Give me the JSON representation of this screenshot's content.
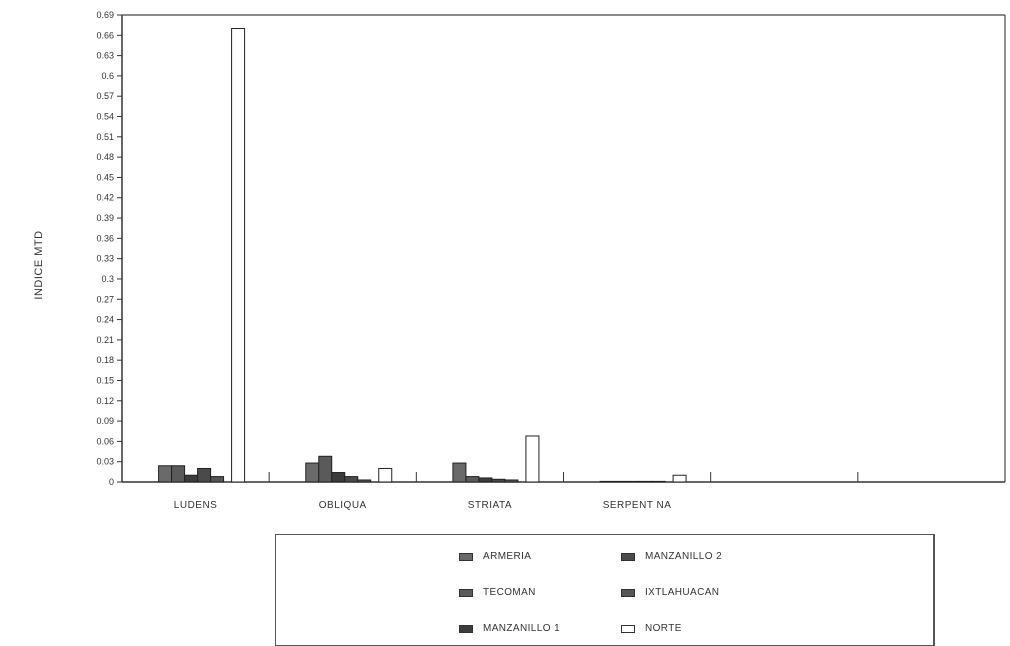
{
  "chart_data": {
    "type": "bar",
    "ylabel": "INDICE MTD",
    "categories": [
      "LUDENS",
      "OBLIQUA",
      "STRIATA",
      "SERPENT NA"
    ],
    "yticks": [
      "0",
      "0.03",
      "0.06",
      "0.09",
      "0.12",
      "0.15",
      "0.18",
      "0.21",
      "0.24",
      "0.27",
      "0.3",
      "0.33",
      "0.36",
      "0.39",
      "0.42",
      "0.45",
      "0.48",
      "0.51",
      "0.54",
      "0.57",
      "0.6",
      "0.63",
      "0.66",
      "0.69"
    ],
    "ylim": [
      0,
      0.69
    ],
    "series": [
      {
        "name": "ARMERIA",
        "color": "#6a6a6a",
        "values": [
          0.024,
          0.028,
          0.028,
          0.0
        ]
      },
      {
        "name": "TECOMAN",
        "color": "#5a5a5a",
        "values": [
          0.024,
          0.038,
          0.008,
          0.0
        ]
      },
      {
        "name": "MANZANILLO 1",
        "color": "#3c3c3c",
        "values": [
          0.01,
          0.014,
          0.006,
          0.0
        ]
      },
      {
        "name": "MANZANILLO 2",
        "color": "#4a4a4a",
        "values": [
          0.02,
          0.008,
          0.004,
          0.0
        ]
      },
      {
        "name": "IXTLAHUACAN",
        "color": "#555555",
        "values": [
          0.008,
          0.003,
          0.003,
          0.0
        ]
      },
      {
        "name": "NORTE",
        "color": "#ffffff",
        "values": [
          0.67,
          0.02,
          0.068,
          0.01
        ]
      }
    ],
    "legend": {
      "placement": "bottom",
      "left_column": [
        "ARMERIA",
        "TECOMAN",
        "MANZANILLO 1"
      ],
      "right_column": [
        "MANZANILLO 2",
        "IXTLAHUACAN",
        "NORTE"
      ],
      "labels": {
        "ARMERIA": "ARMERIA",
        "TECOMAN": "TECOMAN",
        "MANZANILLO 1": "MANZANILLO 1",
        "MANZANILLO 2": "MANZANILLO 2",
        "IXTLAHUACAN": "IXTLAHUACAN",
        "NORTE": "NORTE"
      }
    },
    "grid": false
  }
}
